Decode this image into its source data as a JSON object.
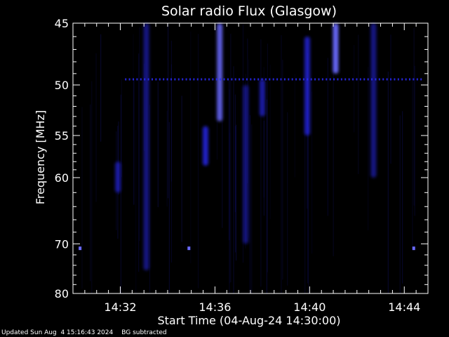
{
  "chart_data": {
    "type": "heatmap",
    "title": "Solar radio Flux (Glasgow)",
    "xlabel": "Start Time (04-Aug-24 14:30:00)",
    "ylabel": "Frequency [MHz]",
    "x_ticks": [
      "14:32",
      "14:36",
      "14:40",
      "14:44"
    ],
    "x_tick_minutes": [
      2,
      6,
      10,
      14
    ],
    "xlim_minutes": [
      0,
      15
    ],
    "y_ticks": [
      45,
      50,
      55,
      60,
      70,
      80
    ],
    "ylim": [
      45,
      80
    ],
    "colors": {
      "background": "#000000",
      "axis": "#ffffff",
      "signal": "#2a2aff",
      "signal_bright": "#6a6aff"
    },
    "features": {
      "continuous_line_mhz": 49.5,
      "continuous_line_minutes": [
        2.2,
        14.8
      ],
      "spots": [
        {
          "minute": 0.3,
          "mhz": 70.8
        },
        {
          "minute": 4.9,
          "mhz": 70.8
        },
        {
          "minute": 14.4,
          "mhz": 70.8
        }
      ],
      "bursts": [
        {
          "minute": 11.1,
          "mhz_from": 45.0,
          "mhz_to": 49.0,
          "intensity": 1.0
        },
        {
          "minute": 6.2,
          "mhz_from": 45.0,
          "mhz_to": 53.5,
          "intensity": 0.85
        },
        {
          "minute": 5.6,
          "mhz_from": 54.0,
          "mhz_to": 58.5,
          "intensity": 0.7
        },
        {
          "minute": 9.9,
          "mhz_from": 46.0,
          "mhz_to": 55.0,
          "intensity": 0.6
        },
        {
          "minute": 8.0,
          "mhz_from": 49.5,
          "mhz_to": 53.0,
          "intensity": 0.45
        },
        {
          "minute": 1.9,
          "mhz_from": 58.0,
          "mhz_to": 62.0,
          "intensity": 0.4
        },
        {
          "minute": 3.1,
          "mhz_from": 45.0,
          "mhz_to": 75.0,
          "intensity": 0.25
        },
        {
          "minute": 12.7,
          "mhz_from": 45.0,
          "mhz_to": 60.0,
          "intensity": 0.25
        },
        {
          "minute": 7.3,
          "mhz_from": 50.0,
          "mhz_to": 70.0,
          "intensity": 0.2
        }
      ]
    }
  },
  "footer": {
    "updated": "Updated Sun Aug  4 15:16:43 2024",
    "note": "BG subtracted"
  }
}
